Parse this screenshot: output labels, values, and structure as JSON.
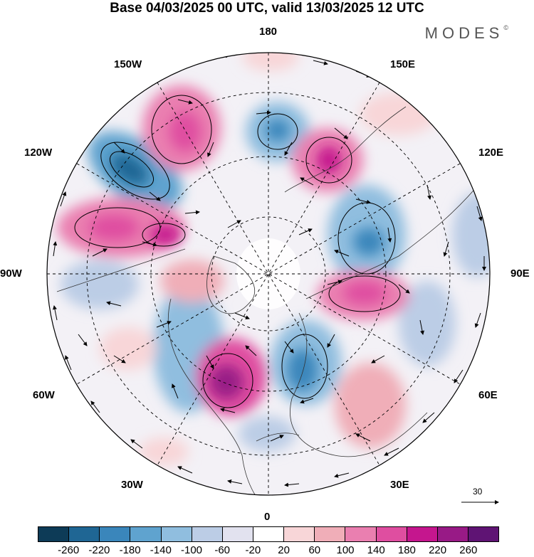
{
  "header": {
    "title": "Base 04/03/2025 00 UTC, valid 13/03/2025 12 UTC",
    "brand": "MODES"
  },
  "map": {
    "projection": "polar-stereographic-north",
    "longitude_labels": {
      "lon_180": "180",
      "lon_150e": "150E",
      "lon_120e": "120E",
      "lon_90e": "90E",
      "lon_60e": "60E",
      "lon_30e": "30E",
      "lon_0": "0",
      "lon_30w": "30W",
      "lon_60w": "60W",
      "lon_90w": "90W",
      "lon_120w": "120W",
      "lon_150w": "150W"
    },
    "reference_vector_label": "30"
  },
  "colorbar": {
    "colors": [
      "#0d3b57",
      "#1f6694",
      "#3a86bb",
      "#5fa3cf",
      "#90bedf",
      "#bccde6",
      "#e2e2ef",
      "#ffffff",
      "#f8d6d8",
      "#f0aeb8",
      "#ea7fb0",
      "#df4ea0",
      "#c5168e",
      "#981a86",
      "#5f1474"
    ],
    "tick_labels": [
      "-260",
      "-220",
      "-180",
      "-140",
      "-100",
      "-60",
      "-20",
      "20",
      "60",
      "100",
      "140",
      "180",
      "220",
      "260"
    ]
  }
}
